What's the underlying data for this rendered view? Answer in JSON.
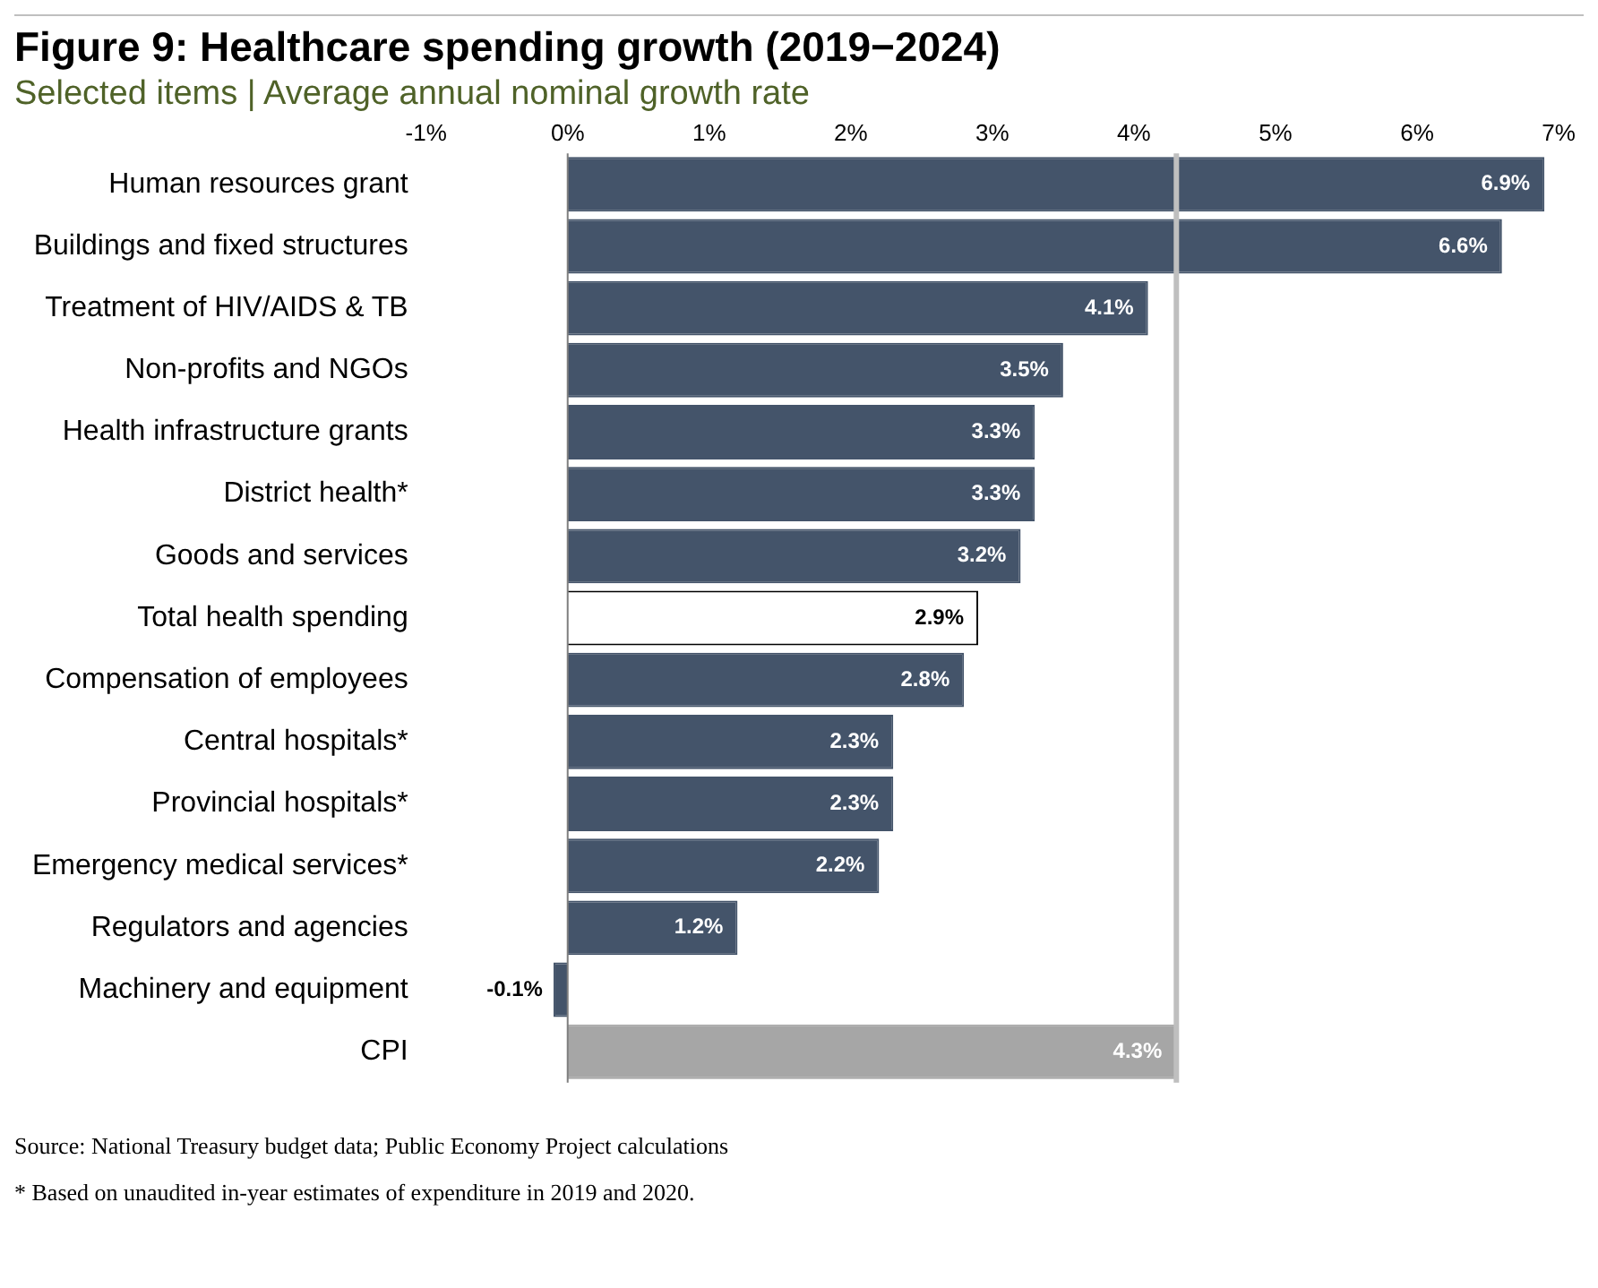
{
  "chart_data": {
    "type": "bar",
    "orientation": "horizontal",
    "title": "Figure 9: Healthcare spending growth (2019−2024)",
    "subtitle": "Selected items | Average annual nominal growth rate",
    "categories": [
      "Human resources grant",
      "Buildings and fixed structures",
      "Treatment of HIV/AIDS & TB",
      "Non-profits and NGOs",
      "Health infrastructure grants",
      "District health*",
      "Goods and services",
      "Total health spending",
      "Compensation of employees",
      "Central hospitals*",
      "Provincial hospitals*",
      "Emergency medical services*",
      "Regulators and agencies",
      "Machinery and equipment",
      "CPI"
    ],
    "values": [
      6.9,
      6.6,
      4.1,
      3.5,
      3.3,
      3.3,
      3.2,
      2.9,
      2.8,
      2.3,
      2.3,
      2.2,
      1.2,
      -0.1,
      4.3
    ],
    "value_labels": [
      "6.9%",
      "6.6%",
      "4.1%",
      "3.5%",
      "3.3%",
      "3.3%",
      "3.2%",
      "2.9%",
      "2.8%",
      "2.3%",
      "2.3%",
      "2.2%",
      "1.2%",
      "-0.1%",
      "4.3%"
    ],
    "colors": [
      "#44546a",
      "#44546a",
      "#44546a",
      "#44546a",
      "#44546a",
      "#44546a",
      "#44546a",
      "#ffffff",
      "#44546a",
      "#44546a",
      "#44546a",
      "#44546a",
      "#44546a",
      "#44546a",
      "#a6a6a6"
    ],
    "xlim": [
      -1,
      7
    ],
    "xticks": [
      {
        "value": -1,
        "label": "-1%"
      },
      {
        "value": 0,
        "label": "0%"
      },
      {
        "value": 1,
        "label": "1%"
      },
      {
        "value": 2,
        "label": "2%"
      },
      {
        "value": 3,
        "label": "3%"
      },
      {
        "value": 4,
        "label": "4%"
      },
      {
        "value": 5,
        "label": "5%"
      },
      {
        "value": 6,
        "label": "6%"
      },
      {
        "value": 7,
        "label": "7%"
      }
    ],
    "ref_lines": [
      {
        "axis": "x",
        "value": 4.3,
        "color": "#bfbfbf"
      }
    ],
    "legend": false,
    "annotations": [
      "Source: National Treasury budget data; Public Economy Project calculations",
      "* Based on unaudited in-year estimates of expenditure in 2019 and 2020."
    ]
  }
}
